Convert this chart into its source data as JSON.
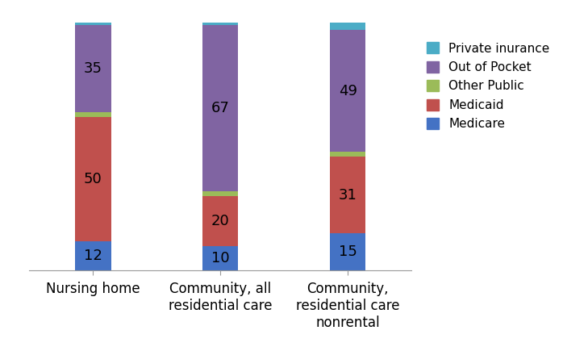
{
  "categories": [
    "Nursing home",
    "Community, all\nresidential care",
    "Community,\nresidential care\nnonrental"
  ],
  "series": [
    {
      "name": "Medicare",
      "values": [
        12,
        10,
        15
      ],
      "color": "#4472C4"
    },
    {
      "name": "Medicaid",
      "values": [
        50,
        20,
        31
      ],
      "color": "#C0504D"
    },
    {
      "name": "Other Public",
      "values": [
        2,
        2,
        2
      ],
      "color": "#9BBB59"
    },
    {
      "name": "Out of Pocket",
      "values": [
        35,
        67,
        49
      ],
      "color": "#8064A2"
    },
    {
      "name": "Private inurance",
      "values": [
        1,
        1,
        3
      ],
      "color": "#4BACC6"
    }
  ],
  "bar_width": 0.28,
  "ylim": [
    0,
    105
  ],
  "legend_labels": [
    "Private inurance",
    "Out of Pocket",
    "Other Public",
    "Medicaid",
    "Medicare"
  ],
  "legend_colors": [
    "#4BACC6",
    "#8064A2",
    "#9BBB59",
    "#C0504D",
    "#4472C4"
  ],
  "label_fontsize": 13,
  "tick_fontsize": 12,
  "legend_fontsize": 11,
  "background_color": "#FFFFFF"
}
